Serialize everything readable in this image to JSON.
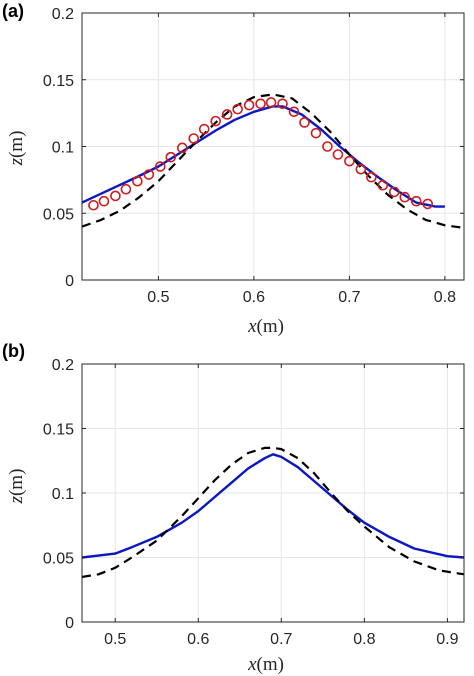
{
  "chart_data": [
    {
      "type": "line",
      "panel_label": "(a)",
      "xlabel": {
        "var": "x",
        "unit": "(m)"
      },
      "ylabel": {
        "var": "z",
        "unit": "(m)"
      },
      "xlim": [
        0.42,
        0.82
      ],
      "ylim": [
        0,
        0.2
      ],
      "xticks": [
        "0.5",
        "0.6",
        "0.7",
        "0.8"
      ],
      "yticks": [
        "0",
        "0.05",
        "0.1",
        "0.15",
        "0.2"
      ],
      "grid": true,
      "colors": {
        "solid": "#0a17c2",
        "dashed": "#000000",
        "markers": "#d01c1c"
      },
      "series": [
        {
          "style": "solid",
          "x": [
            0.42,
            0.45,
            0.48,
            0.5,
            0.52,
            0.54,
            0.56,
            0.58,
            0.6,
            0.62,
            0.63,
            0.65,
            0.67,
            0.69,
            0.71,
            0.73,
            0.75,
            0.77,
            0.79,
            0.8
          ],
          "y": [
            0.058,
            0.068,
            0.078,
            0.085,
            0.094,
            0.103,
            0.112,
            0.12,
            0.126,
            0.13,
            0.13,
            0.124,
            0.113,
            0.1,
            0.088,
            0.077,
            0.067,
            0.058,
            0.055,
            0.055
          ]
        },
        {
          "style": "dashed",
          "x": [
            0.42,
            0.44,
            0.46,
            0.48,
            0.5,
            0.52,
            0.54,
            0.56,
            0.58,
            0.6,
            0.62,
            0.64,
            0.66,
            0.68,
            0.7,
            0.72,
            0.74,
            0.76,
            0.78,
            0.8,
            0.82
          ],
          "y": [
            0.04,
            0.045,
            0.052,
            0.062,
            0.074,
            0.089,
            0.104,
            0.118,
            0.13,
            0.137,
            0.139,
            0.136,
            0.125,
            0.111,
            0.094,
            0.078,
            0.064,
            0.053,
            0.045,
            0.041,
            0.039
          ]
        },
        {
          "style": "markers",
          "x": [
            0.432,
            0.443,
            0.455,
            0.466,
            0.478,
            0.49,
            0.502,
            0.513,
            0.525,
            0.537,
            0.548,
            0.56,
            0.572,
            0.583,
            0.595,
            0.607,
            0.618,
            0.63,
            0.642,
            0.653,
            0.665,
            0.677,
            0.688,
            0.7,
            0.712,
            0.723,
            0.735,
            0.747,
            0.758,
            0.77,
            0.782
          ],
          "y": [
            0.056,
            0.059,
            0.063,
            0.068,
            0.074,
            0.079,
            0.085,
            0.092,
            0.099,
            0.106,
            0.113,
            0.119,
            0.124,
            0.128,
            0.131,
            0.132,
            0.133,
            0.132,
            0.126,
            0.118,
            0.11,
            0.1,
            0.094,
            0.089,
            0.083,
            0.077,
            0.071,
            0.066,
            0.062,
            0.059,
            0.057
          ]
        }
      ]
    },
    {
      "type": "line",
      "panel_label": "(b)",
      "xlabel": {
        "var": "x",
        "unit": "(m)"
      },
      "ylabel": {
        "var": "z",
        "unit": "(m)"
      },
      "xlim": [
        0.46,
        0.92
      ],
      "ylim": [
        0,
        0.2
      ],
      "xticks": [
        "0.5",
        "0.6",
        "0.7",
        "0.8",
        "0.9"
      ],
      "yticks": [
        "0",
        "0.05",
        "0.1",
        "0.15",
        "0.2"
      ],
      "grid": true,
      "colors": {
        "solid": "#0a17c2",
        "dashed": "#000000"
      },
      "series": [
        {
          "style": "solid",
          "x": [
            0.46,
            0.5,
            0.52,
            0.55,
            0.58,
            0.6,
            0.62,
            0.64,
            0.66,
            0.68,
            0.69,
            0.7,
            0.72,
            0.74,
            0.76,
            0.78,
            0.8,
            0.83,
            0.86,
            0.9,
            0.92
          ],
          "y": [
            0.05,
            0.053,
            0.058,
            0.066,
            0.077,
            0.086,
            0.097,
            0.108,
            0.119,
            0.127,
            0.13,
            0.128,
            0.12,
            0.109,
            0.098,
            0.087,
            0.077,
            0.066,
            0.057,
            0.051,
            0.05
          ]
        },
        {
          "style": "dashed",
          "x": [
            0.46,
            0.48,
            0.5,
            0.52,
            0.55,
            0.58,
            0.6,
            0.62,
            0.64,
            0.66,
            0.68,
            0.69,
            0.7,
            0.72,
            0.74,
            0.76,
            0.78,
            0.8,
            0.83,
            0.86,
            0.89,
            0.92
          ],
          "y": [
            0.035,
            0.037,
            0.042,
            0.05,
            0.063,
            0.082,
            0.096,
            0.11,
            0.122,
            0.131,
            0.135,
            0.135,
            0.134,
            0.127,
            0.115,
            0.1,
            0.086,
            0.074,
            0.058,
            0.047,
            0.04,
            0.037
          ]
        }
      ]
    }
  ]
}
